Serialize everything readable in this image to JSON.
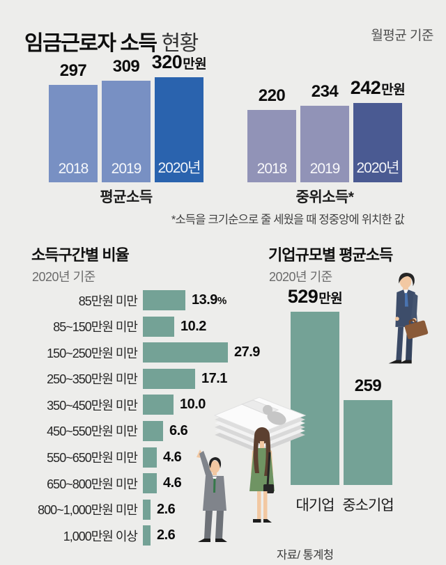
{
  "header": {
    "title_strong": "임금근로자 소득",
    "title_light": "현황",
    "note": "월평균 기준"
  },
  "top_footnote": "*소득을 크기순으로 줄 세웠을 때 정중앙에 위치한 값",
  "source": "자료/ 통계청",
  "colors": {
    "background": "#ededeb",
    "avg_bar_light": "#7890c3",
    "avg_bar_dark": "#2a63ae",
    "median_bar_light": "#9193b7",
    "median_bar_dark": "#4a5a92",
    "teal_bar": "#74a296",
    "text_dark": "#0e0e0e",
    "text_gray": "#4f4f4f",
    "bar_year_text": "#ffffff"
  },
  "illustrations": [
    "money-stack",
    "businessman-with-briefcase",
    "woman-standing",
    "man-pointing-up"
  ],
  "chart_data": [
    {
      "id": "average-income",
      "type": "bar",
      "title": "평균소득",
      "unit": "만원",
      "categories": [
        "2018",
        "2019",
        "2020년"
      ],
      "values": [
        297,
        309,
        320
      ],
      "value_texts": [
        "297",
        "309",
        "320"
      ],
      "value_suffixes": [
        "",
        "",
        "만원"
      ],
      "emphasis": [
        false,
        false,
        true
      ],
      "bar_colors": [
        "#7890c3",
        "#7890c3",
        "#2a63ae"
      ],
      "ylim": [
        0,
        340
      ]
    },
    {
      "id": "median-income",
      "type": "bar",
      "title": "중위소득*",
      "unit": "만원",
      "categories": [
        "2018",
        "2019",
        "2020년"
      ],
      "values": [
        220,
        234,
        242
      ],
      "value_texts": [
        "220",
        "234",
        "242"
      ],
      "value_suffixes": [
        "",
        "",
        "만원"
      ],
      "emphasis": [
        false,
        false,
        true
      ],
      "bar_colors": [
        "#9193b7",
        "#9193b7",
        "#4a5a92"
      ],
      "ylim": [
        0,
        340
      ]
    },
    {
      "id": "income-brackets",
      "type": "bar-horizontal",
      "title": "소득구간별 비율",
      "subtitle": "2020년 기준",
      "unit": "%",
      "categories": [
        "85만원 미만",
        "85~150만원 미만",
        "150~250만원 미만",
        "250~350만원 미만",
        "350~450만원 미만",
        "450~550만원 미만",
        "550~650만원 미만",
        "650~800만원 미만",
        "800~1,000만원 미만",
        "1,000만원 이상"
      ],
      "values": [
        13.9,
        10.2,
        27.9,
        17.1,
        10.0,
        6.6,
        4.6,
        4.6,
        2.6,
        2.6
      ],
      "value_texts": [
        "13.9",
        "10.2",
        "27.9",
        "17.1",
        "10.0",
        "6.6",
        "4.6",
        "4.6",
        "2.6",
        "2.6"
      ],
      "value_suffixes": [
        "%",
        "",
        "",
        "",
        "",
        "",
        "",
        "",
        "",
        ""
      ],
      "bar_color": "#74a296",
      "xlim": [
        0,
        30
      ]
    },
    {
      "id": "company-size-income",
      "type": "bar",
      "title": "기업규모별 평균소득",
      "subtitle": "2020년 기준",
      "unit": "만원",
      "categories": [
        "대기업",
        "중소기업"
      ],
      "values": [
        529,
        259
      ],
      "value_texts": [
        "529",
        "259"
      ],
      "value_suffixes": [
        "만원",
        ""
      ],
      "emphasis": [
        true,
        false
      ],
      "bar_colors": [
        "#74a296",
        "#74a296"
      ],
      "ylim": [
        0,
        560
      ]
    }
  ]
}
